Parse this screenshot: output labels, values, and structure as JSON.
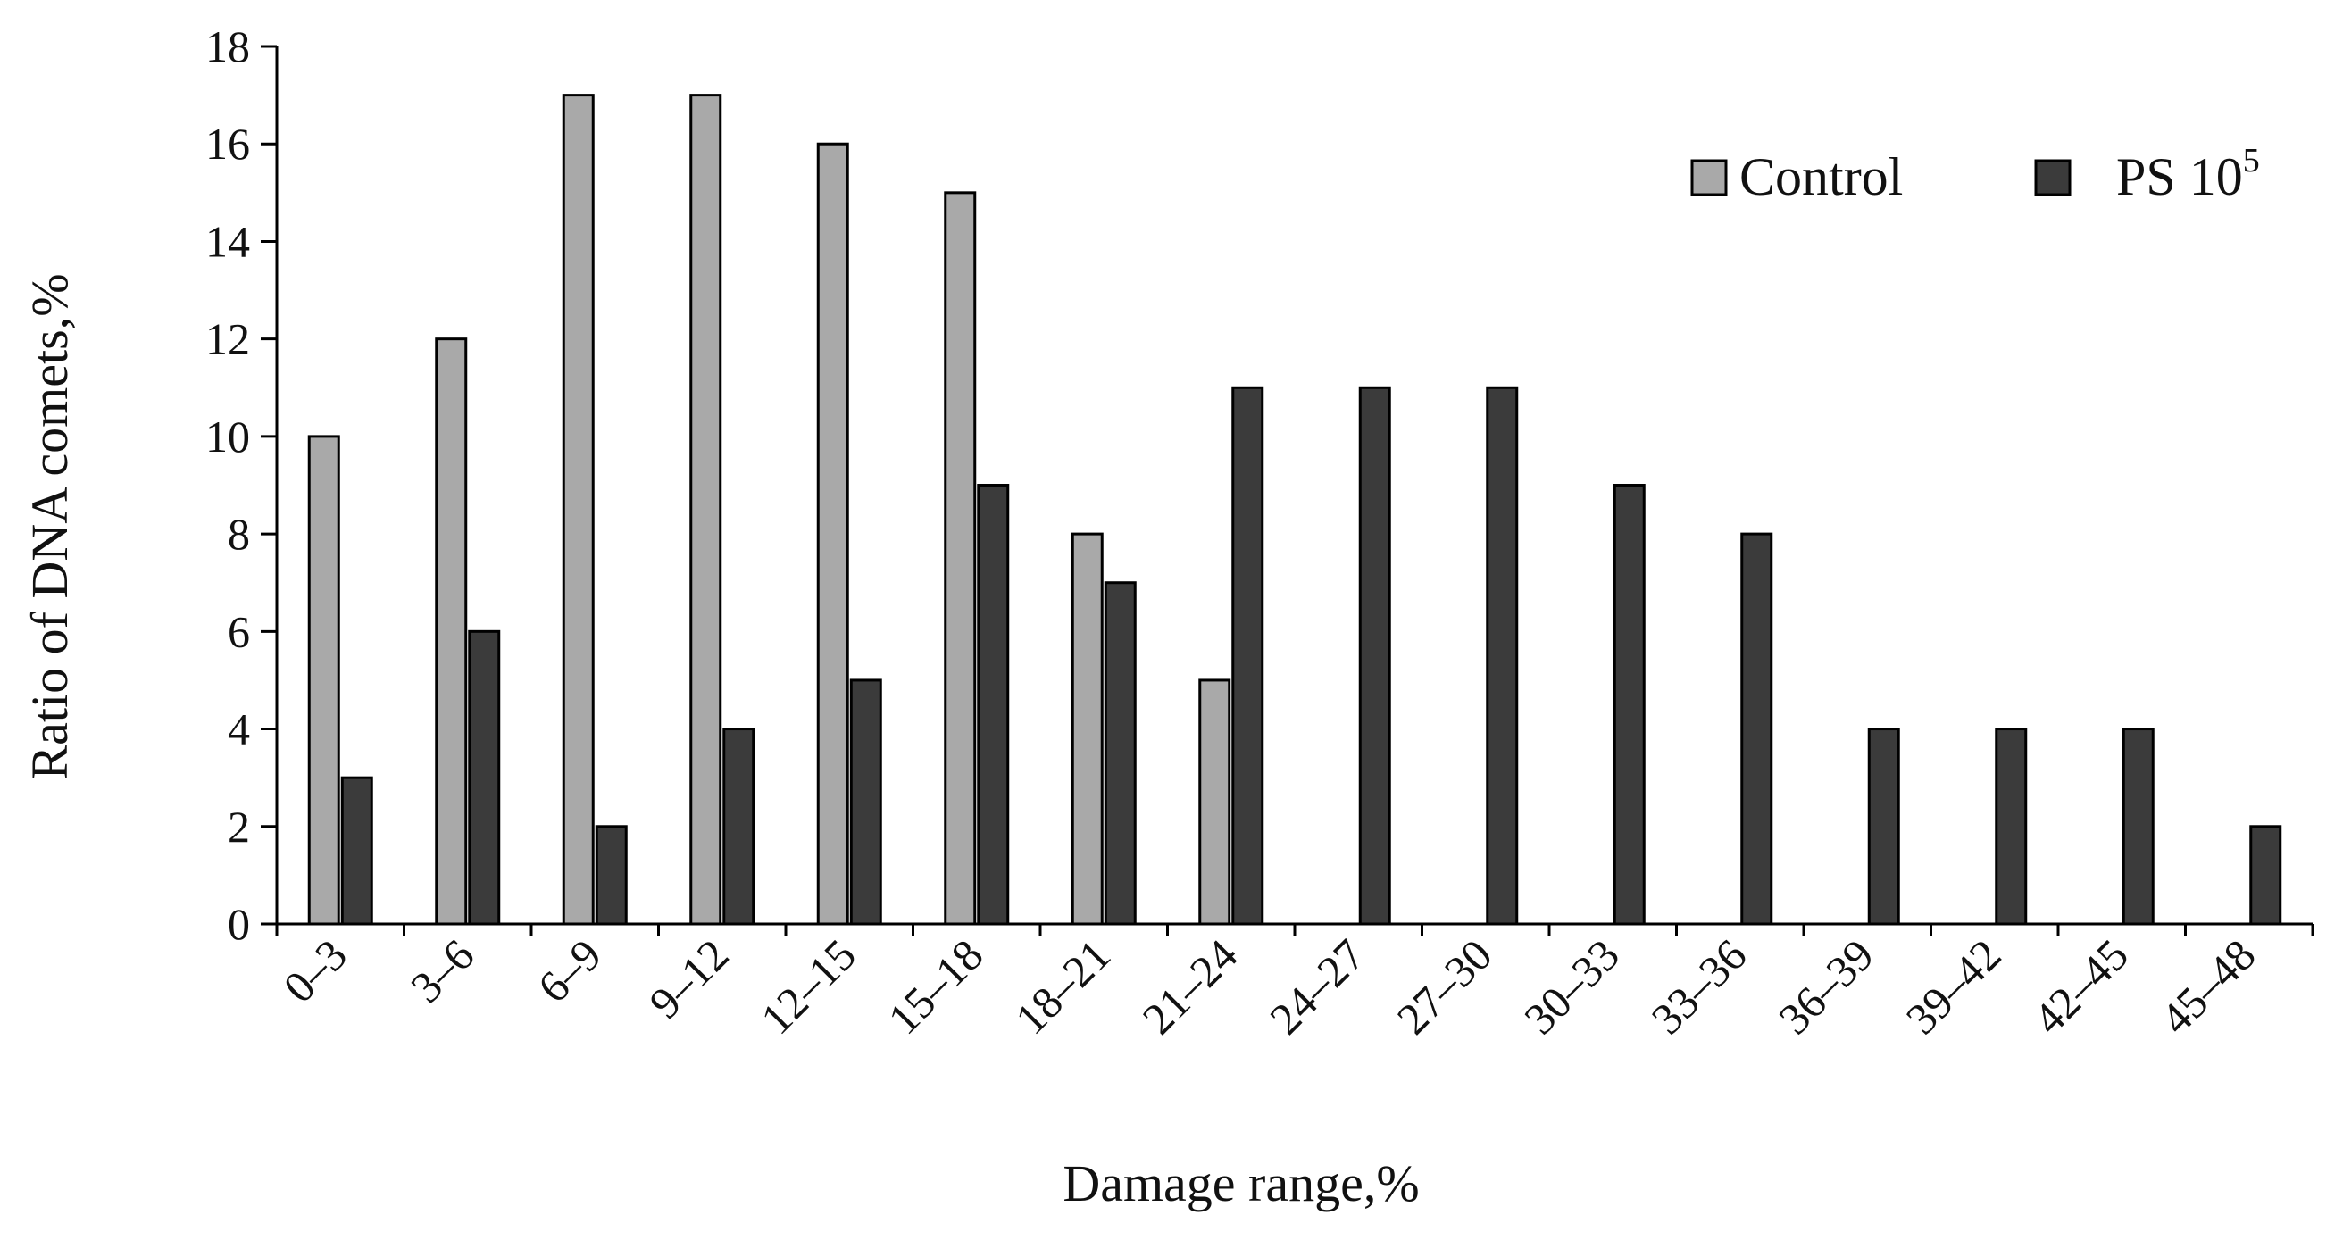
{
  "chart_data": {
    "type": "bar",
    "title": "",
    "xlabel": "Damage range,%",
    "ylabel": "Ratio of DNA comets,%",
    "ylim": [
      0,
      18
    ],
    "yticks": [
      0,
      2,
      4,
      6,
      8,
      10,
      12,
      14,
      16,
      18
    ],
    "grid": false,
    "legend_position": "top-right",
    "categories": [
      "0–3",
      "3–6",
      "6–9",
      "9–12",
      "12–15",
      "15–18",
      "18–21",
      "21–24",
      "24–27",
      "27–30",
      "30–33",
      "33–36",
      "36–39",
      "39–42",
      "42–45",
      "45–48"
    ],
    "series": [
      {
        "name": "Control",
        "color": "#a9a9a9",
        "values": [
          10,
          12,
          17,
          17,
          16,
          15,
          8,
          5,
          0,
          0,
          0,
          0,
          0,
          0,
          0,
          0
        ]
      },
      {
        "name": "PS 10",
        "name_superscript": "5",
        "color": "#3b3b3b",
        "values": [
          3,
          6,
          2,
          4,
          5,
          9,
          7,
          11,
          11,
          11,
          9,
          8,
          4,
          4,
          4,
          2
        ]
      }
    ]
  }
}
